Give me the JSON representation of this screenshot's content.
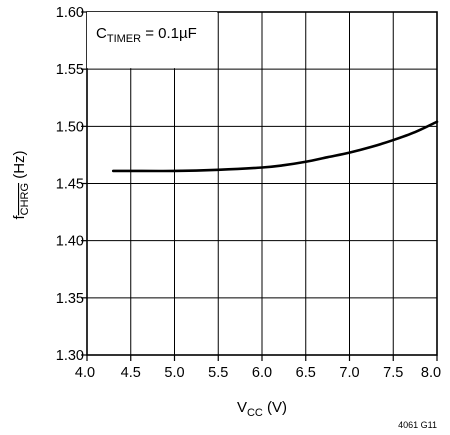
{
  "chart_data": {
    "type": "line",
    "title": "",
    "xlabel": {
      "main": "V",
      "sub": "CC",
      "unit": " (V)"
    },
    "ylabel": {
      "main": "f",
      "sub": "CHRG",
      "unit": " (Hz)"
    },
    "annotation": {
      "main": "C",
      "sub": "TIMER",
      "rest": " = 0.1µF"
    },
    "figure_id": "4061 G11",
    "xlim": [
      4.0,
      8.0
    ],
    "ylim": [
      1.3,
      1.6
    ],
    "xticks": [
      4.0,
      4.5,
      5.0,
      5.5,
      6.0,
      6.5,
      7.0,
      7.5,
      8.0
    ],
    "xtick_labels": [
      "4.0",
      "4.5",
      "5.0",
      "5.5",
      "6.0",
      "6.5",
      "7.0",
      "7.5",
      "8.0"
    ],
    "yticks": [
      1.3,
      1.35,
      1.4,
      1.45,
      1.5,
      1.55,
      1.6
    ],
    "ytick_labels": [
      "1.30",
      "1.35",
      "1.40",
      "1.45",
      "1.50",
      "1.55",
      "1.60"
    ],
    "grid": true,
    "series": [
      {
        "color": "#000000",
        "x": [
          4.3,
          4.5,
          5.0,
          5.5,
          6.0,
          6.25,
          6.5,
          6.75,
          7.0,
          7.25,
          7.5,
          7.75,
          8.0
        ],
        "y": [
          1.461,
          1.461,
          1.461,
          1.462,
          1.464,
          1.466,
          1.469,
          1.473,
          1.477,
          1.482,
          1.488,
          1.495,
          1.504
        ]
      }
    ]
  }
}
